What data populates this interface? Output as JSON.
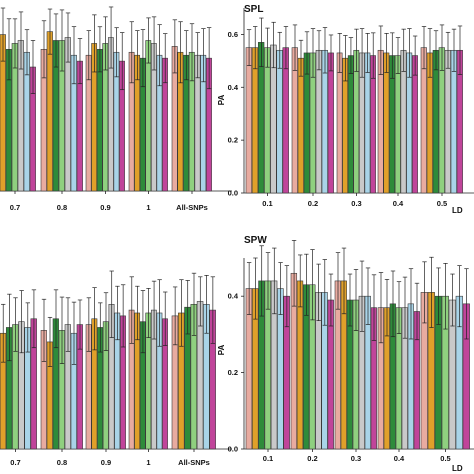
{
  "series_colors": [
    "#e8aba0",
    "#e0a02a",
    "#2e8b3a",
    "#8fd07f",
    "#c9c9c9",
    "#a9d4e8",
    "#c0449a"
  ],
  "chart_data": [
    {
      "id": "top-left",
      "type": "bar",
      "title": "",
      "xlabel": "",
      "ylabel": "",
      "categories": [
        "0.7",
        "0.8",
        "0.9",
        "1",
        "All-SNPs"
      ],
      "ylim": [
        0,
        0.62
      ],
      "grid": false,
      "legend": "none",
      "series": [
        {
          "values": [
            0.47,
            0.48,
            0.46,
            0.47,
            0.49
          ]
        },
        {
          "values": [
            0.53,
            0.54,
            0.5,
            0.46,
            0.47
          ]
        },
        {
          "values": [
            0.48,
            0.51,
            0.48,
            0.45,
            0.46
          ]
        },
        {
          "values": [
            0.5,
            0.51,
            0.5,
            0.51,
            0.47
          ]
        },
        {
          "values": [
            0.51,
            0.52,
            0.52,
            0.5,
            0.46
          ]
        },
        {
          "values": [
            0.47,
            0.46,
            0.47,
            0.46,
            0.46
          ]
        },
        {
          "values": [
            0.42,
            0.44,
            0.44,
            0.45,
            0.45
          ]
        }
      ],
      "error": 0.09
    },
    {
      "id": "top-right",
      "type": "bar",
      "title": "SPL",
      "xlabel": "LD",
      "ylabel": "PA",
      "categories": [
        "0.1",
        "0.2",
        "0.3",
        "0.4",
        "0.5"
      ],
      "yticks": [
        "0.0",
        "0.2",
        "0.4",
        "0.6"
      ],
      "ylim": [
        0,
        0.7
      ],
      "grid": false,
      "legend": "none",
      "series": [
        {
          "values": [
            0.55,
            0.55,
            0.53,
            0.54,
            0.55
          ]
        },
        {
          "values": [
            0.55,
            0.51,
            0.51,
            0.53,
            0.53
          ]
        },
        {
          "values": [
            0.57,
            0.53,
            0.52,
            0.52,
            0.54
          ]
        },
        {
          "values": [
            0.55,
            0.53,
            0.54,
            0.52,
            0.55
          ]
        },
        {
          "values": [
            0.56,
            0.54,
            0.53,
            0.54,
            0.54
          ]
        },
        {
          "values": [
            0.54,
            0.54,
            0.53,
            0.53,
            0.54
          ]
        },
        {
          "values": [
            0.55,
            0.53,
            0.52,
            0.52,
            0.54
          ]
        }
      ],
      "error": 0.08
    },
    {
      "id": "bottom-left",
      "type": "bar",
      "title": "",
      "xlabel": "",
      "ylabel": "",
      "categories": [
        "0.7",
        "0.8",
        "0.9",
        "1",
        "All-SNPs"
      ],
      "ylim": [
        0,
        0.66
      ],
      "grid": false,
      "legend": "none",
      "series": [
        {
          "values": [
            0.44,
            0.41,
            0.43,
            0.48,
            0.46
          ]
        },
        {
          "values": [
            0.4,
            0.37,
            0.45,
            0.47,
            0.47
          ]
        },
        {
          "values": [
            0.42,
            0.45,
            0.42,
            0.44,
            0.49
          ]
        },
        {
          "values": [
            0.43,
            0.41,
            0.44,
            0.47,
            0.5
          ]
        },
        {
          "values": [
            0.44,
            0.43,
            0.5,
            0.48,
            0.51
          ]
        },
        {
          "values": [
            0.42,
            0.4,
            0.47,
            0.47,
            0.5
          ]
        },
        {
          "values": [
            0.45,
            0.43,
            0.46,
            0.45,
            0.48
          ]
        }
      ],
      "error": 0.1
    },
    {
      "id": "bottom-right",
      "type": "bar",
      "title": "SPW",
      "xlabel": "LD",
      "ylabel": "PA",
      "categories": [
        "0.1",
        "0.2",
        "0.3",
        "0.4",
        "0.5"
      ],
      "yticks": [
        "0.0",
        "0.2",
        "0.4"
      ],
      "ylim": [
        0,
        0.5
      ],
      "grid": false,
      "legend": "none",
      "series": [
        {
          "values": [
            0.42,
            0.46,
            0.44,
            0.37,
            0.41
          ]
        },
        {
          "values": [
            0.42,
            0.44,
            0.44,
            0.37,
            0.41
          ]
        },
        {
          "values": [
            0.44,
            0.43,
            0.39,
            0.38,
            0.4
          ]
        },
        {
          "values": [
            0.44,
            0.43,
            0.39,
            0.37,
            0.4
          ]
        },
        {
          "values": [
            0.44,
            0.41,
            0.4,
            0.37,
            0.39
          ]
        },
        {
          "values": [
            0.42,
            0.41,
            0.4,
            0.38,
            0.4
          ]
        },
        {
          "values": [
            0.4,
            0.39,
            0.37,
            0.36,
            0.38
          ]
        }
      ],
      "error": 0.08
    }
  ]
}
